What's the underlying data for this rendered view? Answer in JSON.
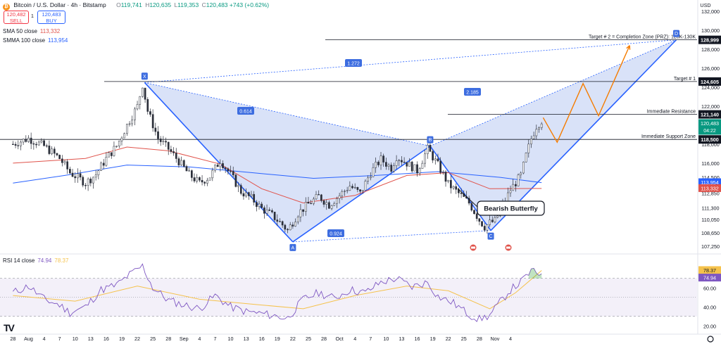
{
  "header": {
    "title": "Bitcoin / U.S. Dollar · 4h · Bitstamp",
    "ohlc": [
      {
        "k": "O",
        "v": "119,741"
      },
      {
        "k": "H",
        "v": "120,635"
      },
      {
        "k": "L",
        "v": "119,353"
      },
      {
        "k": "C",
        "v": "120,483"
      },
      {
        "k": "",
        "v": "+743 (+0.62%)"
      }
    ]
  },
  "trade": {
    "sell_price": "120,482",
    "sell_label": "SELL",
    "buy_price": "120,483",
    "buy_label": "BUY",
    "spread": "1"
  },
  "indicators": {
    "sma50": {
      "label": "SMA 50 close",
      "value": "113,332",
      "color": "#e0534b"
    },
    "smma100": {
      "label": "SMMA 100 close",
      "value": "113,954",
      "color": "#2962ff"
    },
    "rsi": {
      "label": "RSI 14 close",
      "value": "74.94",
      "ma_value": "78.37"
    }
  },
  "colors": {
    "up": "#089981",
    "down": "#f23645",
    "candle": "#2a2e39",
    "pattern_fill": "#c9d6f5",
    "pattern_line": "#2962ff",
    "projection": "#f57c00",
    "rsi_line": "#7e57c2",
    "rsi_ma": "#f5c24c"
  },
  "chart_data": [
    {
      "type": "candlestick",
      "title": "Bitcoin / U.S. Dollar · 4h · Bitstamp",
      "currency": "USD",
      "y_axis_ticks": [
        107250,
        108650,
        110050,
        111300,
        112850,
        114500,
        116000,
        118000,
        120000,
        122000,
        124000,
        126000,
        128000,
        130000,
        132000
      ],
      "ylim": [
        106500,
        133200
      ],
      "x_axis_ticks": [
        "28",
        "Aug",
        "4",
        "7",
        "10",
        "13",
        "16",
        "19",
        "22",
        "25",
        "28",
        "Sep",
        "4",
        "7",
        "10",
        "13",
        "16",
        "19",
        "22",
        "25",
        "28",
        "Oct",
        "4",
        "7",
        "10",
        "13",
        "16",
        "19",
        "22",
        "25",
        "28",
        "Nov",
        "4"
      ],
      "close_path": [
        [
          0,
          118000
        ],
        [
          3,
          118600
        ],
        [
          6,
          117800
        ],
        [
          9,
          116500
        ],
        [
          11,
          115000
        ],
        [
          13,
          114300
        ],
        [
          14,
          113900
        ],
        [
          16,
          114800
        ],
        [
          18,
          116500
        ],
        [
          20,
          117800
        ],
        [
          22,
          120000
        ],
        [
          24,
          122000
        ],
        [
          25,
          124300
        ],
        [
          26,
          121500
        ],
        [
          28,
          118600
        ],
        [
          30,
          117500
        ],
        [
          32,
          116200
        ],
        [
          34,
          114800
        ],
        [
          36,
          113900
        ],
        [
          38,
          114600
        ],
        [
          40,
          116300
        ],
        [
          42,
          114800
        ],
        [
          44,
          113000
        ],
        [
          46,
          112300
        ],
        [
          48,
          111200
        ],
        [
          50,
          110500
        ],
        [
          52,
          109500
        ],
        [
          53,
          108900
        ],
        [
          55,
          110700
        ],
        [
          57,
          111700
        ],
        [
          59,
          112500
        ],
        [
          61,
          111600
        ],
        [
          63,
          112600
        ],
        [
          65,
          113600
        ],
        [
          67,
          112800
        ],
        [
          69,
          115000
        ],
        [
          71,
          116400
        ],
        [
          73,
          115500
        ],
        [
          74,
          116700
        ],
        [
          76,
          116000
        ],
        [
          78,
          115200
        ],
        [
          80,
          117500
        ],
        [
          82,
          115800
        ],
        [
          84,
          113800
        ],
        [
          86,
          112800
        ],
        [
          88,
          111800
        ],
        [
          90,
          110000
        ],
        [
          91,
          109300
        ],
        [
          92,
          109700
        ],
        [
          93,
          109900
        ],
        [
          94,
          111000
        ],
        [
          96,
          113200
        ],
        [
          98,
          114700
        ],
        [
          99,
          116800
        ],
        [
          100,
          118600
        ],
        [
          101,
          119900
        ],
        [
          102,
          120480
        ]
      ],
      "sma50_path": [
        [
          0,
          116000
        ],
        [
          14,
          116500
        ],
        [
          22,
          117700
        ],
        [
          30,
          117300
        ],
        [
          40,
          115900
        ],
        [
          48,
          113300
        ],
        [
          56,
          111800
        ],
        [
          66,
          112600
        ],
        [
          76,
          114700
        ],
        [
          84,
          115000
        ],
        [
          92,
          113300
        ],
        [
          102,
          113330
        ]
      ],
      "smma100_path": [
        [
          0,
          113900
        ],
        [
          10,
          114700
        ],
        [
          22,
          115800
        ],
        [
          34,
          115600
        ],
        [
          46,
          115000
        ],
        [
          58,
          114400
        ],
        [
          70,
          114700
        ],
        [
          82,
          115100
        ],
        [
          94,
          114500
        ],
        [
          102,
          113950
        ]
      ],
      "pattern": {
        "name": "Bearish Butterfly",
        "points": [
          {
            "label": "X",
            "day": 25.4,
            "price": 124500
          },
          {
            "label": "A",
            "day": 54,
            "price": 107700
          },
          {
            "label": "B",
            "day": 80.5,
            "price": 117800
          },
          {
            "label": "C",
            "day": 92.2,
            "price": 108900
          },
          {
            "label": "D",
            "day": 128,
            "price": 129000
          }
        ],
        "ratios": [
          {
            "label": "0.614",
            "between": "X-B"
          },
          {
            "label": "0.924",
            "between": "A-C"
          },
          {
            "label": "2.185",
            "between": "B-D"
          },
          {
            "label": "1.272",
            "between": "X-D"
          }
        ]
      },
      "levels": [
        {
          "label": "Target # 2 = Completion Zone (PRZ): 128K-130K",
          "price": 128999,
          "price_label": "128,999"
        },
        {
          "label": "Target # 1",
          "price": 124605,
          "price_label": "124,605"
        },
        {
          "label": "Immediate Resistance",
          "price": 121140,
          "price_label": "121,140"
        },
        {
          "label": "Immediate Support Zone",
          "price": 118500,
          "price_label": "118,500"
        }
      ],
      "price_tags": [
        {
          "text": "120,483",
          "sub": "04:22",
          "price": 120483
        },
        {
          "text": "113,954",
          "price": 113954
        },
        {
          "text": "113,332",
          "price": 113332
        }
      ],
      "projection_path": [
        [
          102.3,
          120800
        ],
        [
          105,
          118200
        ],
        [
          110,
          124400
        ],
        [
          113,
          121000
        ],
        [
          119,
          128400
        ]
      ]
    },
    {
      "type": "line",
      "title": "RSI 14 close",
      "y_axis_ticks": [
        20,
        40,
        60
      ],
      "ylim": [
        15,
        95
      ],
      "bands": [
        30,
        50,
        70
      ],
      "rsi_path": [
        [
          0,
          55
        ],
        [
          3,
          62
        ],
        [
          6,
          48
        ],
        [
          9,
          42
        ],
        [
          11,
          34
        ],
        [
          14,
          40
        ],
        [
          17,
          58
        ],
        [
          20,
          63
        ],
        [
          22,
          72
        ],
        [
          25,
          83
        ],
        [
          27,
          60
        ],
        [
          30,
          47
        ],
        [
          33,
          42
        ],
        [
          36,
          38
        ],
        [
          39,
          52
        ],
        [
          42,
          40
        ],
        [
          45,
          35
        ],
        [
          48,
          33
        ],
        [
          51,
          30
        ],
        [
          53,
          28
        ],
        [
          56,
          48
        ],
        [
          59,
          55
        ],
        [
          62,
          49
        ],
        [
          65,
          58
        ],
        [
          68,
          55
        ],
        [
          71,
          66
        ],
        [
          74,
          70
        ],
        [
          77,
          61
        ],
        [
          80,
          66
        ],
        [
          82,
          51
        ],
        [
          85,
          44
        ],
        [
          88,
          32
        ],
        [
          90,
          27
        ],
        [
          92,
          31
        ],
        [
          94,
          45
        ],
        [
          96,
          58
        ],
        [
          98,
          66
        ],
        [
          99,
          72
        ],
        [
          100,
          78
        ],
        [
          101,
          75
        ],
        [
          102,
          74.94
        ]
      ],
      "rsi_ma_path": [
        [
          0,
          52
        ],
        [
          12,
          46
        ],
        [
          24,
          62
        ],
        [
          36,
          48
        ],
        [
          48,
          42
        ],
        [
          56,
          38
        ],
        [
          66,
          52
        ],
        [
          76,
          62
        ],
        [
          84,
          57
        ],
        [
          92,
          38
        ],
        [
          97,
          55
        ],
        [
          102,
          78.37
        ]
      ]
    }
  ]
}
